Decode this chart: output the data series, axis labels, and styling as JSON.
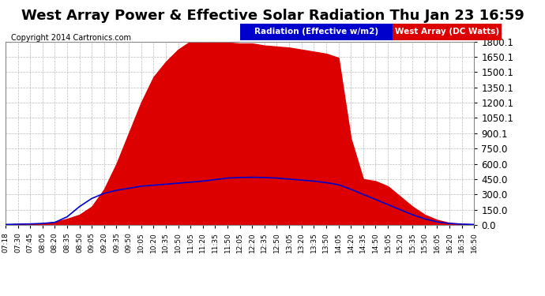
{
  "title": "West Array Power & Effective Solar Radiation Thu Jan 23 16:59",
  "copyright": "Copyright 2014 Cartronics.com",
  "ytick_labels": [
    "0.0",
    "150.0",
    "300.0",
    "450.0",
    "600.0",
    "750.0",
    "900.1",
    "1050.1",
    "1200.1",
    "1350.1",
    "1500.1",
    "1650.1",
    "1800.1"
  ],
  "ytick_vals": [
    0.0,
    150.0,
    300.0,
    450.0,
    600.0,
    750.0,
    900.0,
    1050.0,
    1200.0,
    1350.0,
    1500.0,
    1650.0,
    1800.0
  ],
  "ymin": 0.0,
  "ymax": 1800.1,
  "bg_color": "#ffffff",
  "grid_color": "#bbbbbb",
  "red_fill_color": "#dd0000",
  "blue_line_color": "#0000cc",
  "legend_radiation_bg": "#0000cc",
  "legend_west_bg": "#dd0000",
  "title_fontsize": 13,
  "tick_fontsize": 8.5,
  "copyright_fontsize": 7,
  "x_labels": [
    "07:18",
    "07:30",
    "07:45",
    "08:05",
    "08:20",
    "08:35",
    "08:50",
    "09:05",
    "09:20",
    "09:35",
    "09:50",
    "10:05",
    "10:20",
    "10:35",
    "10:50",
    "11:05",
    "11:20",
    "11:35",
    "11:50",
    "12:05",
    "12:20",
    "12:35",
    "12:50",
    "13:05",
    "13:20",
    "13:35",
    "13:50",
    "14:05",
    "14:20",
    "14:35",
    "14:50",
    "15:05",
    "15:20",
    "15:35",
    "15:50",
    "16:05",
    "16:20",
    "16:35",
    "16:50"
  ],
  "west_power": [
    5,
    8,
    10,
    15,
    30,
    60,
    100,
    180,
    350,
    600,
    900,
    1200,
    1450,
    1600,
    1720,
    1800,
    1790,
    1800,
    1790,
    1780,
    1780,
    1760,
    1750,
    1740,
    1720,
    1700,
    1680,
    1640,
    850,
    450,
    430,
    380,
    280,
    180,
    100,
    50,
    20,
    10,
    5
  ],
  "radiation": [
    5,
    8,
    10,
    15,
    25,
    80,
    180,
    260,
    310,
    340,
    360,
    380,
    390,
    400,
    410,
    420,
    430,
    445,
    460,
    465,
    468,
    465,
    460,
    450,
    440,
    430,
    415,
    395,
    350,
    300,
    250,
    200,
    150,
    100,
    60,
    30,
    15,
    8,
    5
  ]
}
